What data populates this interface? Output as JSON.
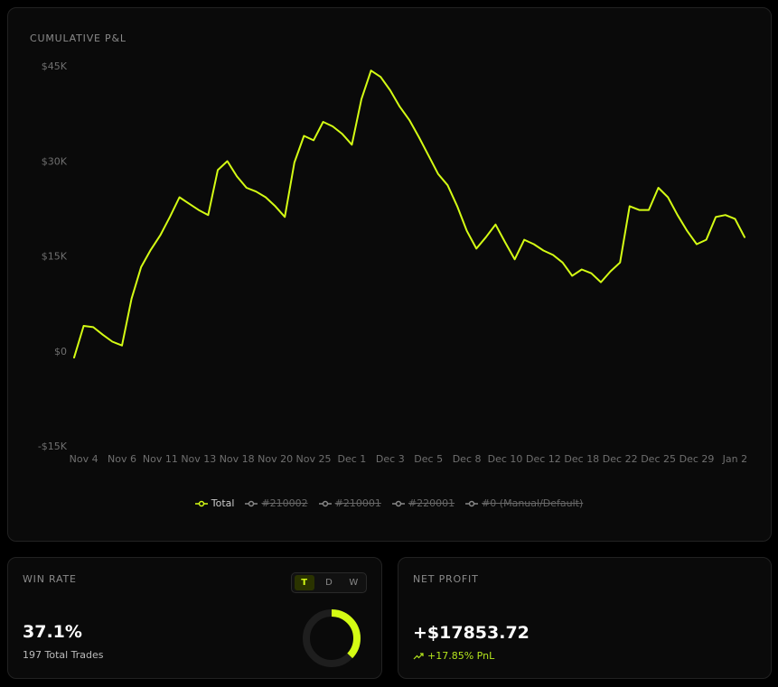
{
  "chart_data": {
    "type": "line",
    "title": "CUMULATIVE P&L",
    "categories": [
      null,
      "Nov 4",
      null,
      null,
      null,
      "Nov 6",
      null,
      null,
      null,
      "Nov 11",
      null,
      null,
      null,
      "Nov 13",
      null,
      null,
      null,
      "Nov 18",
      null,
      null,
      null,
      "Nov 20",
      null,
      null,
      null,
      "Nov 25",
      null,
      null,
      null,
      "Dec 1",
      null,
      null,
      null,
      "Dec 3",
      null,
      null,
      null,
      "Dec 5",
      null,
      null,
      null,
      "Dec 8",
      null,
      null,
      null,
      "Dec 10",
      null,
      null,
      null,
      "Dec 12",
      null,
      null,
      null,
      "Dec 18",
      null,
      null,
      null,
      "Dec 22",
      null,
      null,
      null,
      "Dec 25",
      null,
      null,
      null,
      "Dec 29",
      null,
      null,
      null,
      "Jan 2",
      null
    ],
    "series": [
      {
        "name": "Total",
        "color": "#d4fc14",
        "values": [
          -900,
          4100,
          3900,
          2700,
          1600,
          1000,
          8400,
          13400,
          16100,
          18400,
          21300,
          24400,
          23400,
          22400,
          21600,
          28700,
          30100,
          27700,
          25900,
          25300,
          24400,
          23000,
          21300,
          29900,
          34100,
          33400,
          36300,
          35600,
          34400,
          32700,
          39900,
          44400,
          43400,
          41300,
          38700,
          36600,
          33900,
          31000,
          28100,
          26300,
          23000,
          19100,
          16300,
          18100,
          20100,
          17300,
          14600,
          17700,
          17000,
          16000,
          15300,
          14100,
          12000,
          13000,
          12400,
          11000,
          12700,
          14100,
          23000,
          22400,
          22400,
          25900,
          24400,
          21600,
          19100,
          17000,
          17700,
          21300,
          21600,
          21000,
          18100
        ]
      }
    ],
    "hidden_series": [
      "#210002",
      "#210001",
      "#220001",
      "#0 (Manual/Default)"
    ],
    "ylim": [
      -15000,
      45000
    ],
    "yticks": [
      {
        "value": 45000,
        "label": "$45K"
      },
      {
        "value": 30000,
        "label": "$30K"
      },
      {
        "value": 15000,
        "label": "$15K"
      },
      {
        "value": 0,
        "label": "$0"
      },
      {
        "value": -15000,
        "label": "-$15K"
      }
    ],
    "grid": false
  },
  "win_rate": {
    "title": "WIN RATE",
    "tabs": [
      "T",
      "D",
      "W"
    ],
    "active_tab": 0,
    "value": 37.1,
    "label": "37.1%",
    "trades": "197 Total Trades"
  },
  "net_profit": {
    "title": "NET PROFIT",
    "value": "+$17853.72",
    "change": "+17.85% PnL"
  }
}
